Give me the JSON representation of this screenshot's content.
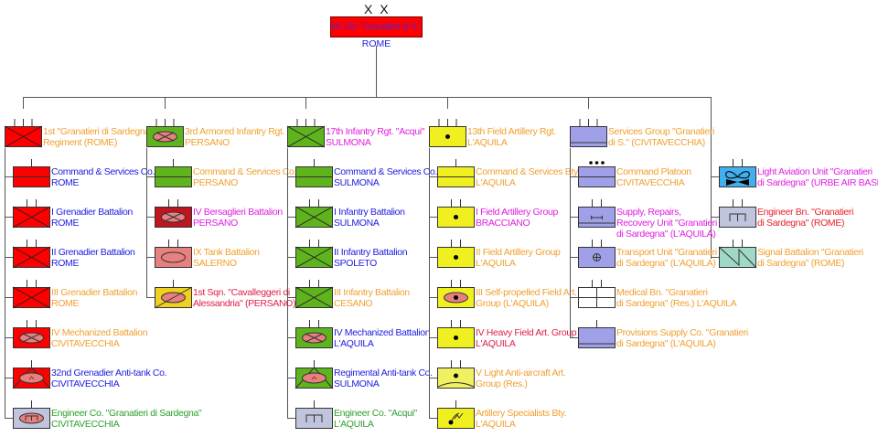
{
  "division": {
    "echelon": "X X",
    "name": "Inf. Div. \"Granatieri di S.\"",
    "location": "ROME",
    "fill": "#ff0000"
  },
  "colors": {
    "orange": "#f0a030",
    "blue": "#2020e0",
    "magenta": "#e020e0",
    "red": "#e8202a",
    "green": "#30a030",
    "crimson": "#e0204a"
  },
  "columns": [
    {
      "units": [
        {
          "lines": [
            "1st \"Granatieri di Sardegna\"",
            "Regiment (ROME)"
          ],
          "color": "orange",
          "fill": "#ff0000",
          "echelon": "III",
          "symbol": "infantry"
        },
        {
          "lines": [
            "Command & Services Co.",
            "ROME"
          ],
          "color": "blue",
          "fill": "#ff0000",
          "echelon": "I",
          "symbol": "command"
        },
        {
          "lines": [
            "I Grenadier Battalion",
            "ROME"
          ],
          "color": "blue",
          "fill": "#ff0000",
          "echelon": "II",
          "symbol": "infantry"
        },
        {
          "lines": [
            "II Grenadier Battalion",
            "ROME"
          ],
          "color": "blue",
          "fill": "#ff0000",
          "echelon": "II",
          "symbol": "infantry"
        },
        {
          "lines": [
            "III Grenadier Battalion",
            "ROME"
          ],
          "color": "orange",
          "fill": "#ff0000",
          "echelon": "II",
          "symbol": "infantry"
        },
        {
          "lines": [
            "IV Mechanized Battalion",
            "CIVITAVECCHIA"
          ],
          "color": "orange",
          "fill": "#ff0000",
          "echelon": "II",
          "symbol": "mechanized"
        },
        {
          "lines": [
            "32nd Grenadier Anti-tank Co.",
            "CIVITAVECCHIA"
          ],
          "color": "blue",
          "fill": "#ff0000",
          "echelon": "I",
          "symbol": "anti-tank"
        },
        {
          "lines": [
            "Engineer Co. \"Granatieri di Sardegna\"",
            "CIVITAVECCHIA"
          ],
          "color": "green",
          "fill": "#c0c4dc",
          "echelon": "I",
          "symbol": "engineer-armored"
        }
      ]
    },
    {
      "units": [
        {
          "lines": [
            "3rd Armored Infantry Rgt.",
            "PERSANO"
          ],
          "color": "orange",
          "fill": "#5fb41e",
          "echelon": "III",
          "symbol": "mechanized"
        },
        {
          "lines": [
            "Command & Services Co.",
            "PERSANO"
          ],
          "color": "orange",
          "fill": "#5fb41e",
          "echelon": "I",
          "symbol": "command"
        },
        {
          "lines": [
            "IV Bersaglieri Battalion",
            "PERSANO"
          ],
          "color": "magenta",
          "fill": "#c0141e",
          "echelon": "II",
          "symbol": "mechanized"
        },
        {
          "lines": [
            "IX Tank Battalion",
            "SALERNO"
          ],
          "color": "orange",
          "fill": "#e88080",
          "echelon": "II",
          "symbol": "tank"
        },
        {
          "lines": [
            "1st Sqn. \"Cavalleggeri di",
            "Alessandria\" (PERSANO)"
          ],
          "color": "crimson",
          "fill": "#f0d020",
          "echelon": "I",
          "symbol": "cavalry"
        }
      ]
    },
    {
      "units": [
        {
          "lines": [
            "17th Infantry Rgt. \"Acqui\"",
            "SULMONA"
          ],
          "color": "magenta",
          "fill": "#5fb41e",
          "echelon": "III",
          "symbol": "infantry"
        },
        {
          "lines": [
            "Command & Services Co.",
            "SULMONA"
          ],
          "color": "blue",
          "fill": "#5fb41e",
          "echelon": "I",
          "symbol": "command"
        },
        {
          "lines": [
            "I Infantry Battalion",
            "SULMONA"
          ],
          "color": "blue",
          "fill": "#5fb41e",
          "echelon": "II",
          "symbol": "infantry"
        },
        {
          "lines": [
            "II Infantry Battalion",
            "SPOLETO"
          ],
          "color": "blue",
          "fill": "#5fb41e",
          "echelon": "II",
          "symbol": "infantry"
        },
        {
          "lines": [
            "III Infantry Battalion",
            "CESANO"
          ],
          "color": "orange",
          "fill": "#5fb41e",
          "echelon": "II",
          "symbol": "infantry"
        },
        {
          "lines": [
            "IV Mechanized Battalion",
            "L'AQUILA"
          ],
          "color": "blue",
          "fill": "#5fb41e",
          "echelon": "II",
          "symbol": "mechanized"
        },
        {
          "lines": [
            "Regimental Anti-tank Co.",
            "SULMONA"
          ],
          "color": "blue",
          "fill": "#5fb41e",
          "echelon": "I",
          "symbol": "anti-tank"
        },
        {
          "lines": [
            "Engineer Co. \"Acqui\"",
            "L'AQUILA"
          ],
          "color": "green",
          "fill": "#c0c4dc",
          "echelon": "I",
          "symbol": "engineer"
        }
      ]
    },
    {
      "units": [
        {
          "lines": [
            "13th Field Artillery Rgt.",
            "L'AQUILA"
          ],
          "color": "orange",
          "fill": "#f0f020",
          "echelon": "III",
          "symbol": "artillery"
        },
        {
          "lines": [
            "Command & Services Bty.",
            "L'AQUILA"
          ],
          "color": "orange",
          "fill": "#f0f020",
          "echelon": "I",
          "symbol": "command"
        },
        {
          "lines": [
            "I Field Artillery Group",
            "BRACCIANO"
          ],
          "color": "magenta",
          "fill": "#f0f020",
          "echelon": "II",
          "symbol": "artillery"
        },
        {
          "lines": [
            "II Field Artillery Group",
            "L'AQUILA"
          ],
          "color": "orange",
          "fill": "#f0f020",
          "echelon": "II",
          "symbol": "artillery"
        },
        {
          "lines": [
            "III Self-propelled Field Art.",
            "Group (L'AQUILA)"
          ],
          "color": "orange",
          "fill": "#f0f020",
          "echelon": "II",
          "symbol": "sp-artillery"
        },
        {
          "lines": [
            "IV Heavy Field Art. Group",
            "L'AQUILA"
          ],
          "color": "crimson",
          "fill": "#f0f020",
          "echelon": "II",
          "symbol": "artillery"
        },
        {
          "lines": [
            "V Light Anti-aircraft Art.",
            "Group (Res.)"
          ],
          "color": "orange",
          "fill": "#f0f060",
          "echelon": "II",
          "symbol": "air-defense"
        },
        {
          "lines": [
            "Artillery Specialists Bty.",
            "L'AQUILA"
          ],
          "color": "orange",
          "fill": "#f0f020",
          "echelon": "I",
          "symbol": "radar"
        }
      ]
    },
    {
      "units": [
        {
          "lines": [
            "Services Group \"Granatieri",
            "di S.\" (CIVITAVECCHIA)"
          ],
          "color": "orange",
          "fill": "#a0a0e8",
          "echelon": "III",
          "symbol": "services"
        },
        {
          "lines": [
            "Command Platoon",
            "CIVITAVECCHIA"
          ],
          "color": "orange",
          "fill": "#a0a0e8",
          "echelon": "•••",
          "symbol": "command"
        },
        {
          "lines": [
            "Supply, Repairs,",
            "Recovery Unit \"Granatieri",
            "di Sardegna\" (L'AQUILA)"
          ],
          "color": "magenta",
          "fill": "#a0a0e8",
          "echelon": "II",
          "symbol": "maintenance"
        },
        {
          "lines": [
            "Transport Unit \"Granatieri",
            "di Sardegna\" (L'AQUILA)"
          ],
          "color": "orange",
          "fill": "#a0a0e8",
          "echelon": "II",
          "symbol": "transport"
        },
        {
          "lines": [
            "Medical Bn. \"Granatieri",
            "di Sardegna\" (Res.) L'AQUILA"
          ],
          "color": "orange",
          "fill": "#ffffff",
          "echelon": "II",
          "symbol": "medical"
        },
        {
          "lines": [
            "Provisions Supply Co. \"Granatieri",
            "di Sardegna\" (L'AQUILA)"
          ],
          "color": "orange",
          "fill": "#a0a0e8",
          "echelon": "I",
          "symbol": "services"
        }
      ]
    },
    {
      "units": [
        {
          "lines": [
            "Light Aviation Unit \"Granatieri",
            "di Sardegna\" (URBE AIR BASE)"
          ],
          "color": "magenta",
          "fill": "#40b0f0",
          "echelon": "II",
          "symbol": "aviation"
        },
        {
          "lines": [
            "Engineer Bn. \"Granatieri",
            "di Sardegna\" (ROME)"
          ],
          "color": "red",
          "fill": "#c0c4dc",
          "echelon": "II",
          "symbol": "engineer"
        },
        {
          "lines": [
            "Signal Battalion \"Granatieri",
            "di Sardegna\" (ROME)"
          ],
          "color": "orange",
          "fill": "#a0d8c8",
          "echelon": "II",
          "symbol": "signal"
        }
      ]
    }
  ]
}
